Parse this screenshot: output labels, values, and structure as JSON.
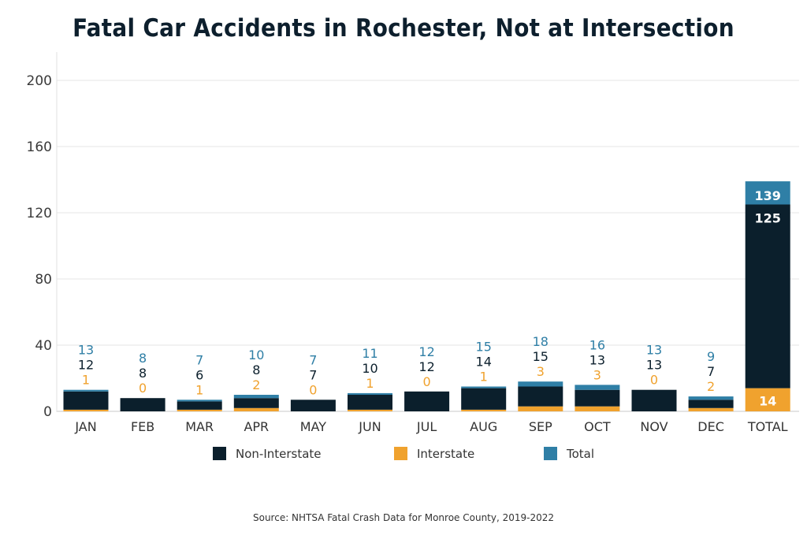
{
  "chart_data": {
    "type": "bar",
    "stacked": true,
    "title": "Fatal Car Accidents in Rochester,  Not at Intersection",
    "categories": [
      "JAN",
      "FEB",
      "MAR",
      "APR",
      "MAY",
      "JUN",
      "JUL",
      "AUG",
      "SEP",
      "OCT",
      "NOV",
      "DEC",
      "TOTAL"
    ],
    "series": [
      {
        "name": "Non-Interstate",
        "color": "#0b1f2c",
        "values": [
          12,
          8,
          6,
          8,
          7,
          10,
          12,
          14,
          15,
          13,
          13,
          7,
          125
        ]
      },
      {
        "name": "Interstate",
        "color": "#f0a22e",
        "values": [
          1,
          0,
          1,
          2,
          0,
          1,
          0,
          1,
          3,
          3,
          0,
          2,
          14
        ]
      },
      {
        "name": "Total",
        "color": "#2f7fa6",
        "values": [
          13,
          8,
          7,
          10,
          7,
          11,
          12,
          15,
          18,
          16,
          13,
          9,
          139
        ]
      }
    ],
    "ylim": [
      0,
      200
    ],
    "yticks": [
      0,
      40,
      80,
      120,
      160,
      200
    ],
    "grid": true,
    "legend": "bottom",
    "highlight_category_color": "#e0262f",
    "source": "Source: NHTSA Fatal Crash Data for Monroe County, 2019-2022"
  }
}
